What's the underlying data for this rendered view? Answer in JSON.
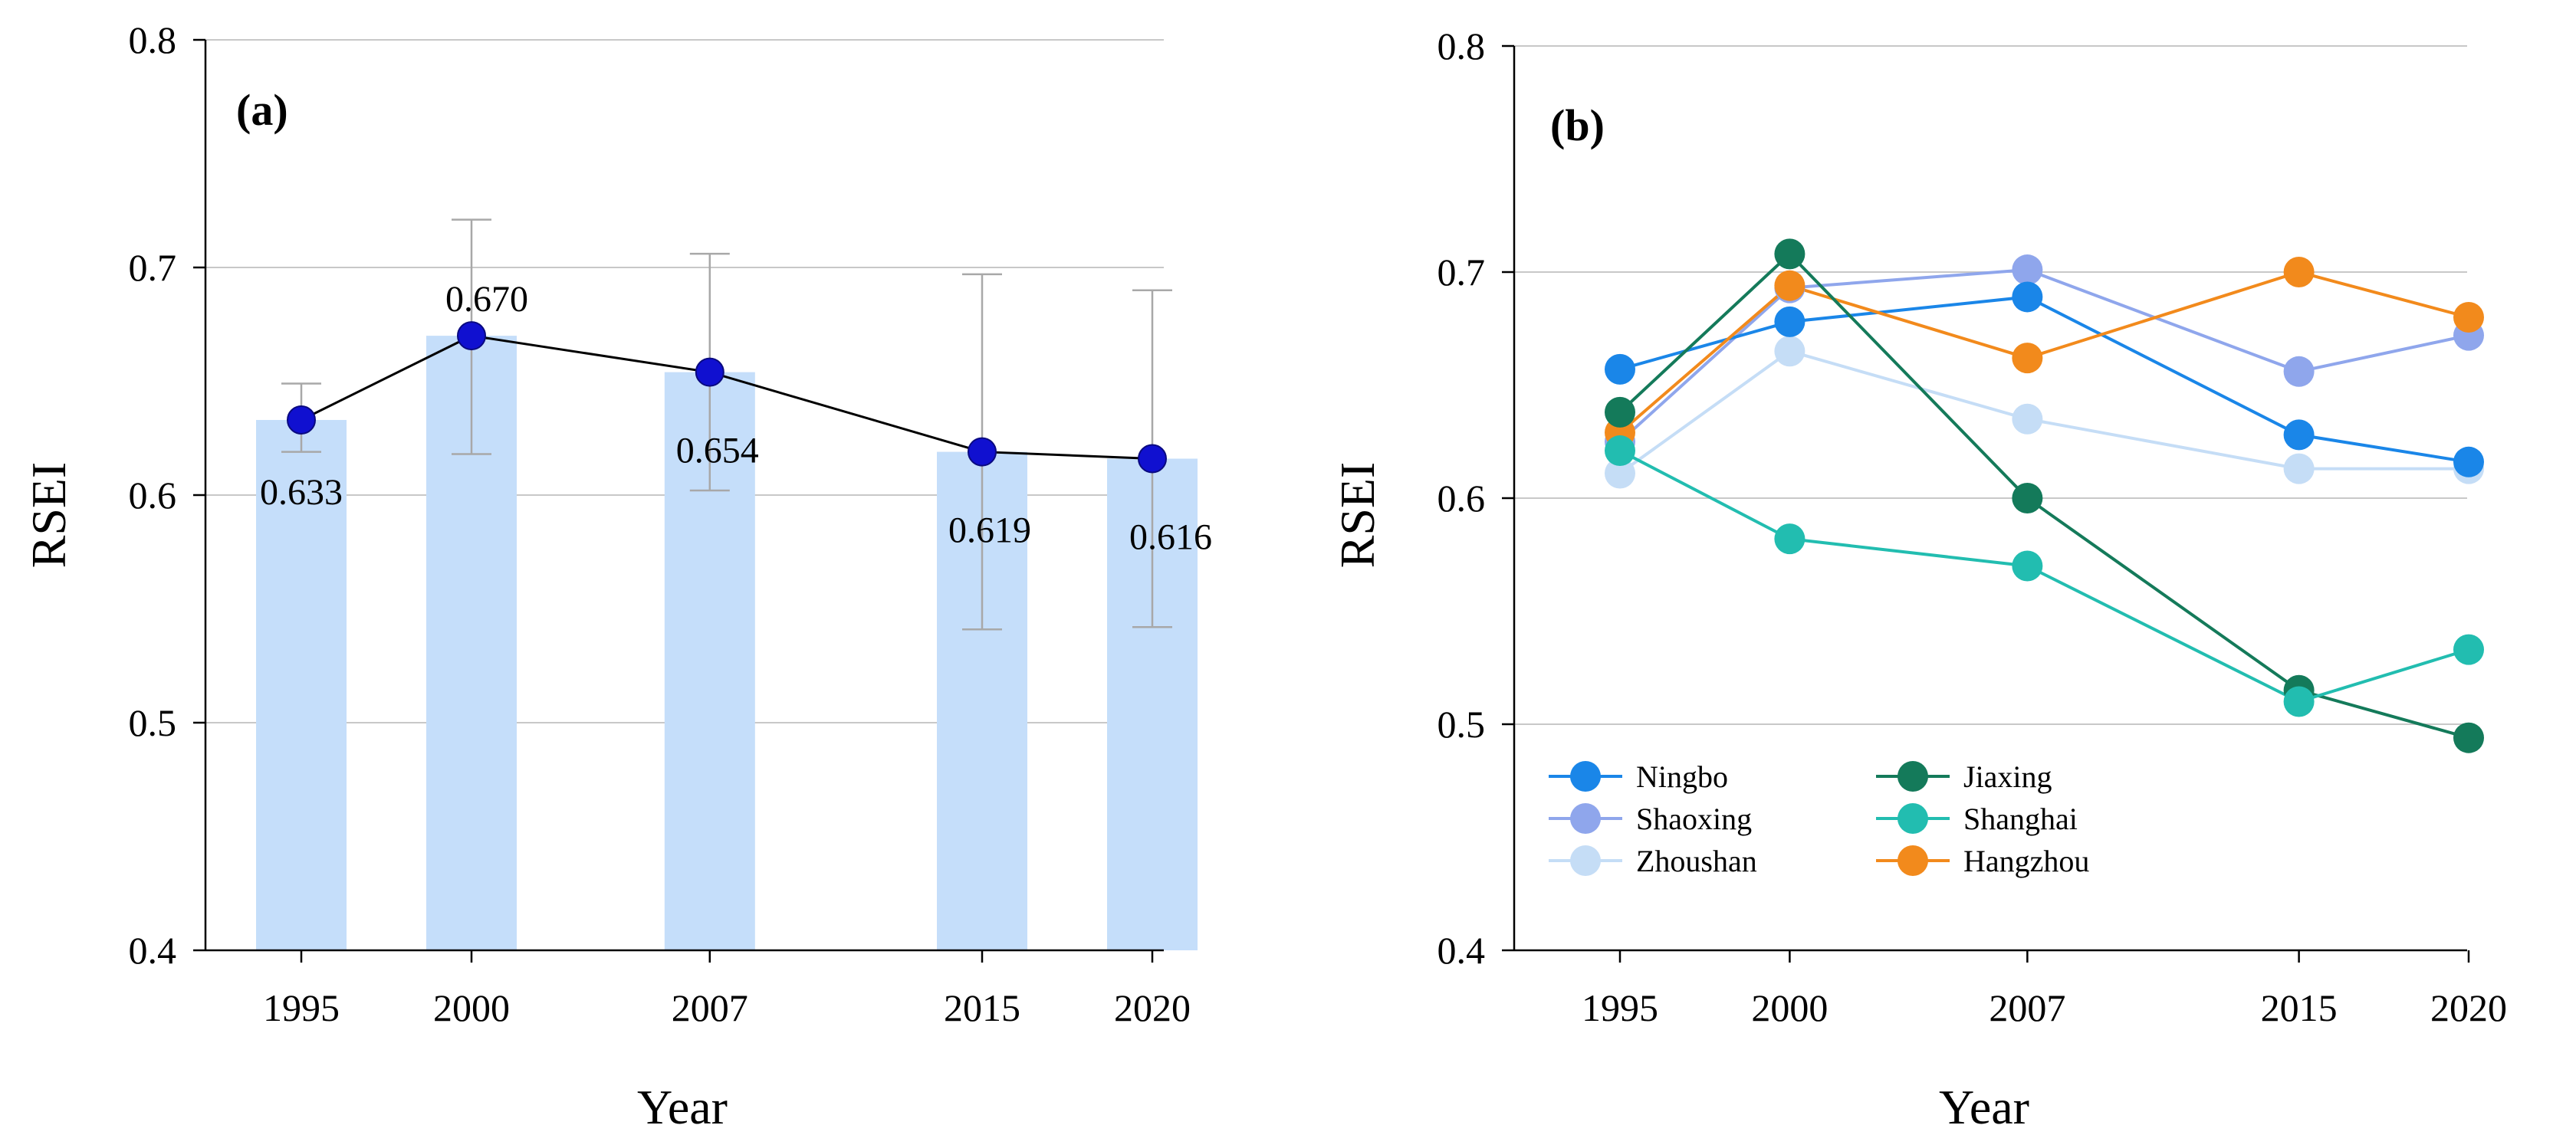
{
  "chart_data": [
    {
      "panel": "a",
      "type": "bar",
      "panel_label": "(a)",
      "xlabel": "Year",
      "ylabel": "RSEI",
      "ylim": [
        0.4,
        0.8
      ],
      "yticks": [
        "0.4",
        "0.5",
        "0.6",
        "0.7",
        "0.8"
      ],
      "ytick_values": [
        0.4,
        0.5,
        0.6,
        0.7,
        0.8
      ],
      "categories": [
        "1995",
        "2000",
        "2007",
        "2015",
        "2020"
      ],
      "x_positions": [
        1995,
        2000,
        2007,
        2015,
        2020
      ],
      "values": [
        0.633,
        0.67,
        0.654,
        0.619,
        0.616
      ],
      "value_labels": [
        "0.633",
        "0.670",
        "0.654",
        "0.619",
        "0.616"
      ],
      "error_low": [
        0.619,
        0.618,
        0.602,
        0.541,
        0.542
      ],
      "error_high": [
        0.649,
        0.721,
        0.706,
        0.697,
        0.69
      ],
      "bar_color": "#c5defa",
      "marker_color": "#1010d0",
      "line_color": "#000000",
      "gridlines": true
    },
    {
      "panel": "b",
      "type": "line",
      "panel_label": "(b)",
      "xlabel": "Year",
      "ylabel": "RSEI",
      "ylim": [
        0.4,
        0.8
      ],
      "yticks": [
        "0.4",
        "0.5",
        "0.6",
        "0.7",
        "0.8"
      ],
      "ytick_values": [
        0.4,
        0.5,
        0.6,
        0.7,
        0.8
      ],
      "categories": [
        "1995",
        "2000",
        "2007",
        "2015",
        "2020"
      ],
      "x_positions": [
        1995,
        2000,
        2007,
        2015,
        2020
      ],
      "legend_position": "bottom-left",
      "gridlines": true,
      "series": [
        {
          "name": "Zhoushan",
          "color": "#c5ddf6",
          "values": [
            0.611,
            0.665,
            0.635,
            0.613,
            0.613
          ]
        },
        {
          "name": "Shaoxing",
          "color": "#8fa6ec",
          "values": [
            0.625,
            0.693,
            0.701,
            0.656,
            0.672
          ]
        },
        {
          "name": "Ningbo",
          "color": "#1a86e8",
          "values": [
            0.657,
            0.678,
            0.689,
            0.628,
            0.616
          ]
        },
        {
          "name": "Hangzhou",
          "color": "#f28a1c",
          "values": [
            0.629,
            0.694,
            0.662,
            0.7,
            0.68
          ]
        },
        {
          "name": "Jiaxing",
          "color": "#147a5a",
          "values": [
            0.638,
            0.708,
            0.6,
            0.515,
            0.494
          ]
        },
        {
          "name": "Shanghai",
          "color": "#22bdb0",
          "values": [
            0.621,
            0.582,
            0.57,
            0.51,
            0.533
          ]
        }
      ],
      "legend_order": [
        "Ningbo",
        "Jiaxing",
        "Shaoxing",
        "Shanghai",
        "Zhoushan",
        "Hangzhou"
      ]
    }
  ]
}
